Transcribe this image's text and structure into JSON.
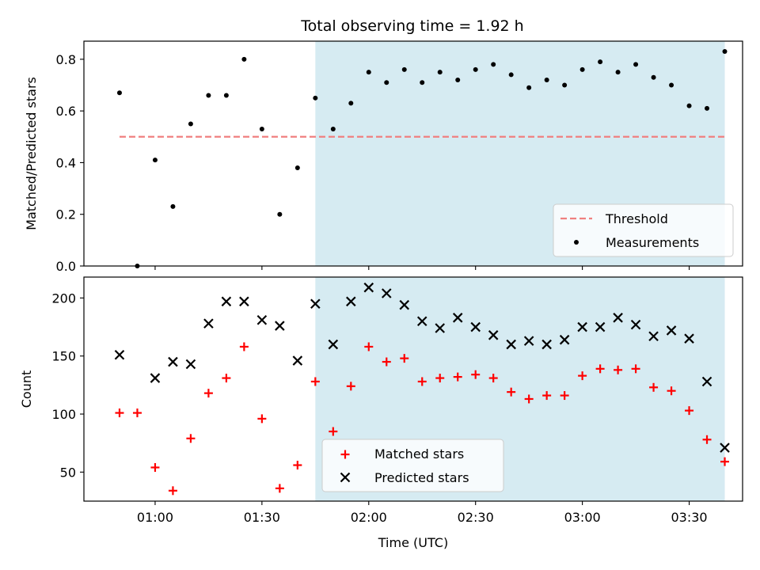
{
  "title": "Total observing time = 1.92 h",
  "colors": {
    "shade": "#add8e6",
    "threshold": "#f08080",
    "measurement": "#000000",
    "matched": "#ff0000",
    "predicted": "#000000"
  },
  "chart_data": [
    {
      "type": "scatter",
      "ylabel": "Matched/Predicted stars",
      "xlabel": "",
      "xlim": [
        "00:40",
        "03:45"
      ],
      "ylim": [
        0,
        0.87
      ],
      "yticks": [
        0.0,
        0.2,
        0.4,
        0.6,
        0.8
      ],
      "ytick_labels": [
        "0.0",
        "0.2",
        "0.4",
        "0.6",
        "0.8"
      ],
      "xticks": [
        "01:00",
        "01:30",
        "02:00",
        "02:30",
        "03:00",
        "03:30"
      ],
      "shaded_span": [
        "01:45",
        "03:40"
      ],
      "threshold": {
        "label": "Threshold",
        "y": 0.5,
        "x_from": "00:50",
        "x_to": "03:40"
      },
      "legend_position": "lower-right",
      "series": [
        {
          "name": "Measurements",
          "marker": "dot",
          "x": [
            "00:50",
            "00:55",
            "01:00",
            "01:05",
            "01:10",
            "01:15",
            "01:20",
            "01:25",
            "01:30",
            "01:35",
            "01:40",
            "01:45",
            "01:50",
            "01:55",
            "02:00",
            "02:05",
            "02:10",
            "02:15",
            "02:20",
            "02:25",
            "02:30",
            "02:35",
            "02:40",
            "02:45",
            "02:50",
            "02:55",
            "03:00",
            "03:05",
            "03:10",
            "03:15",
            "03:20",
            "03:25",
            "03:30",
            "03:35",
            "03:40"
          ],
          "y": [
            0.67,
            0.0,
            0.41,
            0.23,
            0.55,
            0.66,
            0.66,
            0.8,
            0.53,
            0.2,
            0.38,
            0.65,
            0.53,
            0.63,
            0.75,
            0.71,
            0.76,
            0.71,
            0.75,
            0.72,
            0.76,
            0.78,
            0.74,
            0.69,
            0.72,
            0.7,
            0.76,
            0.79,
            0.75,
            0.78,
            0.73,
            0.7,
            0.62,
            0.61,
            0.83
          ]
        }
      ]
    },
    {
      "type": "scatter",
      "ylabel": "Count",
      "xlabel": "Time (UTC)",
      "xlim": [
        "00:40",
        "03:45"
      ],
      "ylim": [
        25,
        218
      ],
      "yticks": [
        50,
        100,
        150,
        200
      ],
      "ytick_labels": [
        "50",
        "100",
        "150",
        "200"
      ],
      "xticks": [
        "01:00",
        "01:30",
        "02:00",
        "02:30",
        "03:00",
        "03:30"
      ],
      "shaded_span": [
        "01:45",
        "03:40"
      ],
      "legend_position": "lower-center",
      "series": [
        {
          "name": "Matched stars",
          "marker": "plus",
          "x": [
            "00:50",
            "00:55",
            "01:00",
            "01:05",
            "01:10",
            "01:15",
            "01:20",
            "01:25",
            "01:30",
            "01:35",
            "01:40",
            "01:45",
            "01:50",
            "01:55",
            "02:00",
            "02:05",
            "02:10",
            "02:15",
            "02:20",
            "02:25",
            "02:30",
            "02:35",
            "02:40",
            "02:45",
            "02:50",
            "02:55",
            "03:00",
            "03:05",
            "03:10",
            "03:15",
            "03:20",
            "03:25",
            "03:30",
            "03:35",
            "03:40"
          ],
          "y": [
            101,
            101,
            54,
            34,
            79,
            118,
            131,
            158,
            96,
            36,
            56,
            128,
            85,
            124,
            158,
            145,
            148,
            128,
            131,
            132,
            134,
            131,
            119,
            113,
            116,
            116,
            133,
            139,
            138,
            139,
            123,
            120,
            103,
            78,
            59
          ]
        },
        {
          "name": "Predicted stars",
          "marker": "x",
          "x": [
            "00:50",
            "01:00",
            "01:05",
            "01:10",
            "01:15",
            "01:20",
            "01:25",
            "01:30",
            "01:35",
            "01:40",
            "01:45",
            "01:50",
            "01:55",
            "02:00",
            "02:05",
            "02:10",
            "02:15",
            "02:20",
            "02:25",
            "02:30",
            "02:35",
            "02:40",
            "02:45",
            "02:50",
            "02:55",
            "03:00",
            "03:05",
            "03:10",
            "03:15",
            "03:20",
            "03:25",
            "03:30",
            "03:35",
            "03:40"
          ],
          "y": [
            151,
            131,
            145,
            143,
            178,
            197,
            197,
            181,
            176,
            146,
            195,
            160,
            197,
            209,
            204,
            194,
            180,
            174,
            183,
            175,
            168,
            160,
            163,
            160,
            164,
            175,
            175,
            183,
            177,
            167,
            172,
            165,
            128,
            71
          ]
        }
      ]
    }
  ]
}
